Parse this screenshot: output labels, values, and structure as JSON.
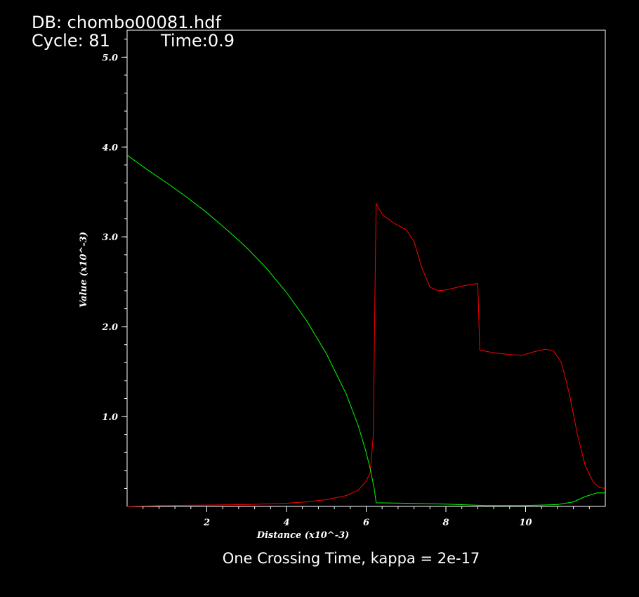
{
  "header": {
    "db_label": "DB: chombo00081.hdf",
    "cycle_label": "Cycle: 81",
    "time_label": "Time:0.9"
  },
  "caption": "One Crossing Time, kappa = 2e-17",
  "chart_data": {
    "type": "line",
    "xlabel": "Distance (x10^-3)",
    "ylabel": "Value (x10^-3)",
    "xlim": [
      0,
      12
    ],
    "ylim": [
      0.0,
      5.3
    ],
    "x_ticks": [
      2,
      4,
      6,
      8,
      10
    ],
    "x_tick_labels": [
      "2",
      "4",
      "6",
      "8",
      "10"
    ],
    "y_ticks": [
      1.0,
      2.0,
      3.0,
      4.0,
      5.0
    ],
    "y_tick_labels": [
      "1.0",
      "2.0",
      "3.0",
      "4.0",
      "5.0"
    ],
    "grid": false,
    "series": [
      {
        "color": "#ff0000",
        "points": [
          [
            0,
            0.0
          ],
          [
            1,
            0.01
          ],
          [
            2,
            0.015
          ],
          [
            3,
            0.02
          ],
          [
            4,
            0.035
          ],
          [
            4.5,
            0.05
          ],
          [
            5,
            0.075
          ],
          [
            5.5,
            0.12
          ],
          [
            5.8,
            0.18
          ],
          [
            6.0,
            0.28
          ],
          [
            6.1,
            0.38
          ],
          [
            6.18,
            0.8
          ],
          [
            6.22,
            2.4
          ],
          [
            6.25,
            3.37
          ],
          [
            6.4,
            3.25
          ],
          [
            6.7,
            3.15
          ],
          [
            7.0,
            3.08
          ],
          [
            7.2,
            2.95
          ],
          [
            7.4,
            2.65
          ],
          [
            7.6,
            2.44
          ],
          [
            7.8,
            2.4
          ],
          [
            8.0,
            2.41
          ],
          [
            8.3,
            2.44
          ],
          [
            8.6,
            2.47
          ],
          [
            8.8,
            2.48
          ],
          [
            8.82,
            2.2
          ],
          [
            8.85,
            1.74
          ],
          [
            9.2,
            1.71
          ],
          [
            9.6,
            1.69
          ],
          [
            9.9,
            1.68
          ],
          [
            10.2,
            1.72
          ],
          [
            10.5,
            1.75
          ],
          [
            10.7,
            1.73
          ],
          [
            10.9,
            1.6
          ],
          [
            11.1,
            1.25
          ],
          [
            11.3,
            0.8
          ],
          [
            11.5,
            0.45
          ],
          [
            11.7,
            0.27
          ],
          [
            11.85,
            0.21
          ],
          [
            12,
            0.2
          ]
        ]
      },
      {
        "color": "#00ff00",
        "points": [
          [
            0,
            3.91
          ],
          [
            0.5,
            3.75
          ],
          [
            1,
            3.6
          ],
          [
            1.5,
            3.44
          ],
          [
            2,
            3.27
          ],
          [
            2.5,
            3.08
          ],
          [
            3,
            2.88
          ],
          [
            3.5,
            2.65
          ],
          [
            4,
            2.38
          ],
          [
            4.5,
            2.07
          ],
          [
            5,
            1.7
          ],
          [
            5.5,
            1.25
          ],
          [
            5.8,
            0.9
          ],
          [
            6.0,
            0.6
          ],
          [
            6.1,
            0.42
          ],
          [
            6.2,
            0.2
          ],
          [
            6.25,
            0.04
          ],
          [
            7,
            0.035
          ],
          [
            8,
            0.025
          ],
          [
            9,
            0.01
          ],
          [
            10,
            0.01
          ],
          [
            10.8,
            0.02
          ],
          [
            11.2,
            0.05
          ],
          [
            11.5,
            0.11
          ],
          [
            11.8,
            0.15
          ],
          [
            12,
            0.15
          ]
        ]
      }
    ]
  }
}
